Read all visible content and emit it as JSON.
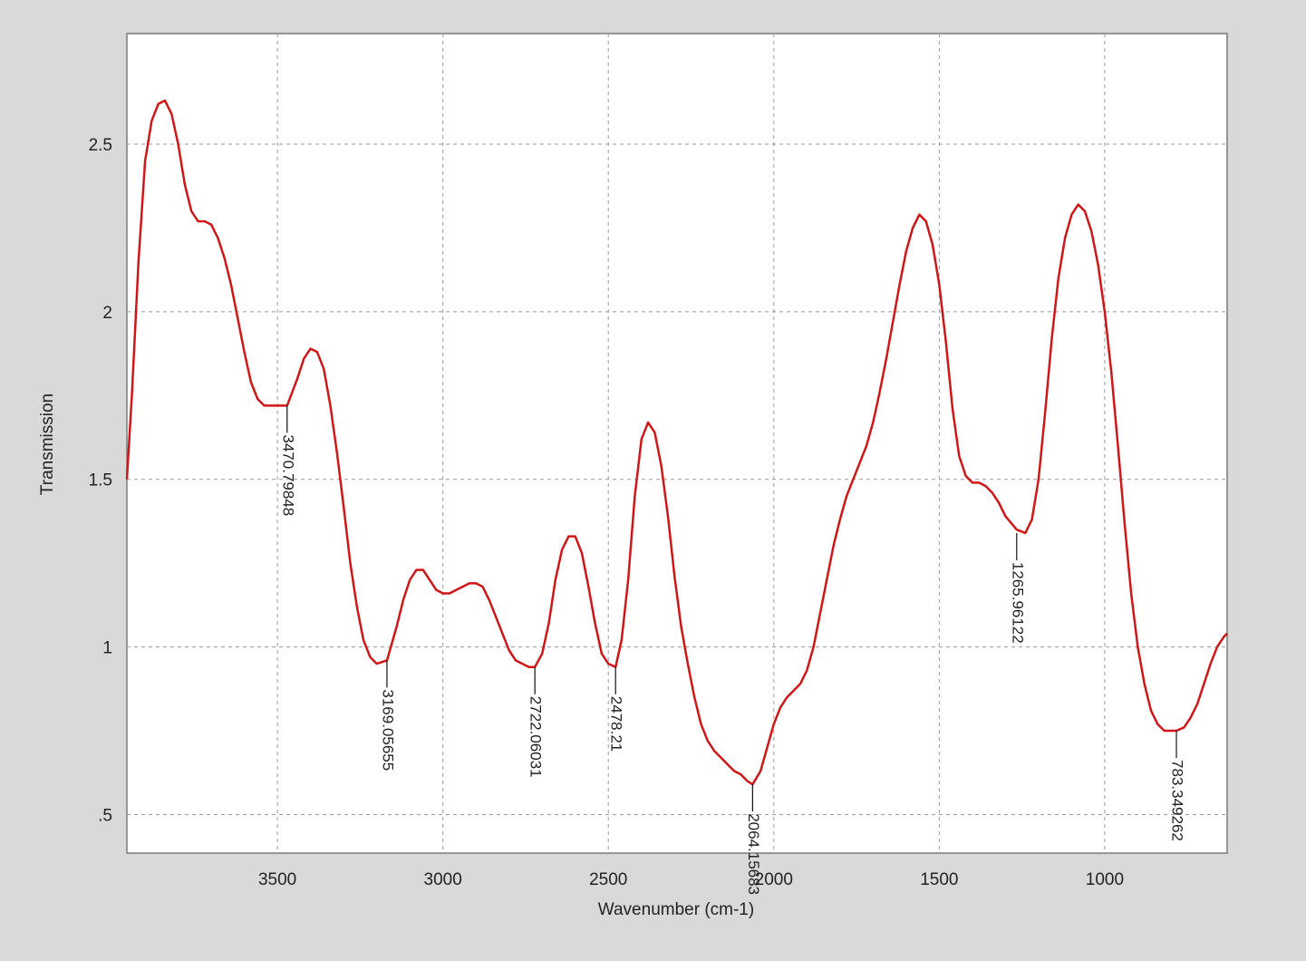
{
  "chart_data": {
    "type": "line",
    "title": "",
    "xlabel": "Wavenumber (cm-1)",
    "ylabel": "Transmission",
    "xlim": [
      3955,
      630
    ],
    "ylim": [
      0.385,
      2.83
    ],
    "x_reversed": true,
    "grid": true,
    "grid_style": "dashed",
    "line_color": "#d01616",
    "x_ticks": [
      3500,
      3000,
      2500,
      2000,
      1500,
      1000
    ],
    "x_tick_labels": [
      "3500",
      "3000",
      "2500",
      "2000",
      "1500",
      "1000"
    ],
    "y_ticks": [
      0.5,
      1,
      1.5,
      2,
      2.5
    ],
    "y_tick_labels": [
      ".5",
      "1",
      "1.5",
      "2",
      "2.5"
    ],
    "series": [
      {
        "x": [
          3955,
          3940,
          3920,
          3900,
          3880,
          3860,
          3840,
          3820,
          3800,
          3780,
          3760,
          3740,
          3720,
          3700,
          3680,
          3660,
          3640,
          3620,
          3600,
          3580,
          3560,
          3540,
          3520,
          3500,
          3470.79848,
          3440,
          3420,
          3400,
          3380,
          3360,
          3340,
          3320,
          3300,
          3280,
          3260,
          3240,
          3220,
          3200,
          3169.05655,
          3140,
          3120,
          3100,
          3080,
          3060,
          3040,
          3020,
          3000,
          2980,
          2960,
          2940,
          2920,
          2900,
          2880,
          2860,
          2840,
          2820,
          2800,
          2780,
          2760,
          2740,
          2722.06031,
          2700,
          2680,
          2660,
          2640,
          2620,
          2600,
          2580,
          2560,
          2540,
          2520,
          2500,
          2478.21,
          2460,
          2440,
          2420,
          2400,
          2380,
          2360,
          2340,
          2320,
          2300,
          2280,
          2260,
          2240,
          2220,
          2200,
          2180,
          2160,
          2140,
          2120,
          2100,
          2080,
          2064.15683,
          2040,
          2020,
          2000,
          1980,
          1960,
          1940,
          1920,
          1900,
          1880,
          1860,
          1840,
          1820,
          1800,
          1780,
          1760,
          1740,
          1720,
          1700,
          1680,
          1660,
          1640,
          1620,
          1600,
          1580,
          1560,
          1540,
          1520,
          1500,
          1480,
          1460,
          1440,
          1420,
          1400,
          1380,
          1360,
          1340,
          1320,
          1300,
          1265.96122,
          1240,
          1220,
          1200,
          1180,
          1160,
          1140,
          1120,
          1100,
          1080,
          1060,
          1040,
          1020,
          1000,
          980,
          960,
          940,
          920,
          900,
          880,
          860,
          840,
          820,
          783.349262,
          760,
          740,
          720,
          700,
          680,
          660,
          640,
          630
        ],
        "y": [
          1.5,
          1.75,
          2.15,
          2.45,
          2.57,
          2.62,
          2.63,
          2.59,
          2.5,
          2.38,
          2.3,
          2.27,
          2.27,
          2.26,
          2.22,
          2.16,
          2.08,
          1.98,
          1.88,
          1.79,
          1.74,
          1.72,
          1.72,
          1.72,
          1.72,
          1.8,
          1.86,
          1.89,
          1.88,
          1.83,
          1.72,
          1.58,
          1.42,
          1.25,
          1.12,
          1.02,
          0.97,
          0.95,
          0.96,
          1.06,
          1.14,
          1.2,
          1.23,
          1.23,
          1.2,
          1.17,
          1.16,
          1.16,
          1.17,
          1.18,
          1.19,
          1.19,
          1.18,
          1.14,
          1.09,
          1.04,
          0.99,
          0.96,
          0.95,
          0.94,
          0.94,
          0.98,
          1.07,
          1.2,
          1.29,
          1.33,
          1.33,
          1.28,
          1.18,
          1.07,
          0.98,
          0.95,
          0.94,
          1.02,
          1.2,
          1.45,
          1.62,
          1.67,
          1.64,
          1.54,
          1.39,
          1.21,
          1.06,
          0.95,
          0.85,
          0.77,
          0.72,
          0.69,
          0.67,
          0.65,
          0.63,
          0.62,
          0.6,
          0.59,
          0.63,
          0.7,
          0.77,
          0.82,
          0.85,
          0.87,
          0.89,
          0.93,
          1.0,
          1.1,
          1.2,
          1.3,
          1.38,
          1.45,
          1.5,
          1.55,
          1.6,
          1.67,
          1.76,
          1.86,
          1.97,
          2.08,
          2.18,
          2.25,
          2.29,
          2.27,
          2.2,
          2.08,
          1.91,
          1.71,
          1.57,
          1.51,
          1.49,
          1.49,
          1.48,
          1.46,
          1.43,
          1.39,
          1.35,
          1.34,
          1.38,
          1.5,
          1.7,
          1.92,
          2.1,
          2.22,
          2.29,
          2.32,
          2.3,
          2.24,
          2.14,
          2.0,
          1.82,
          1.6,
          1.37,
          1.16,
          1.0,
          0.89,
          0.81,
          0.77,
          0.75,
          0.75,
          0.76,
          0.79,
          0.83,
          0.89,
          0.95,
          1.0,
          1.03,
          1.04
        ]
      }
    ],
    "annotations": [
      {
        "text": "3470.79848",
        "x": 3470.79848,
        "y": 1.72
      },
      {
        "text": "3169.05655",
        "x": 3169.05655,
        "y": 0.96
      },
      {
        "text": "2722.06031",
        "x": 2722.06031,
        "y": 0.94
      },
      {
        "text": "2478.21",
        "x": 2478.21,
        "y": 0.94
      },
      {
        "text": "2064.15683",
        "x": 2064.15683,
        "y": 0.59
      },
      {
        "text": "1265.96122",
        "x": 1265.96122,
        "y": 1.34
      },
      {
        "text": "783.349262",
        "x": 783.349262,
        "y": 0.75
      }
    ]
  }
}
